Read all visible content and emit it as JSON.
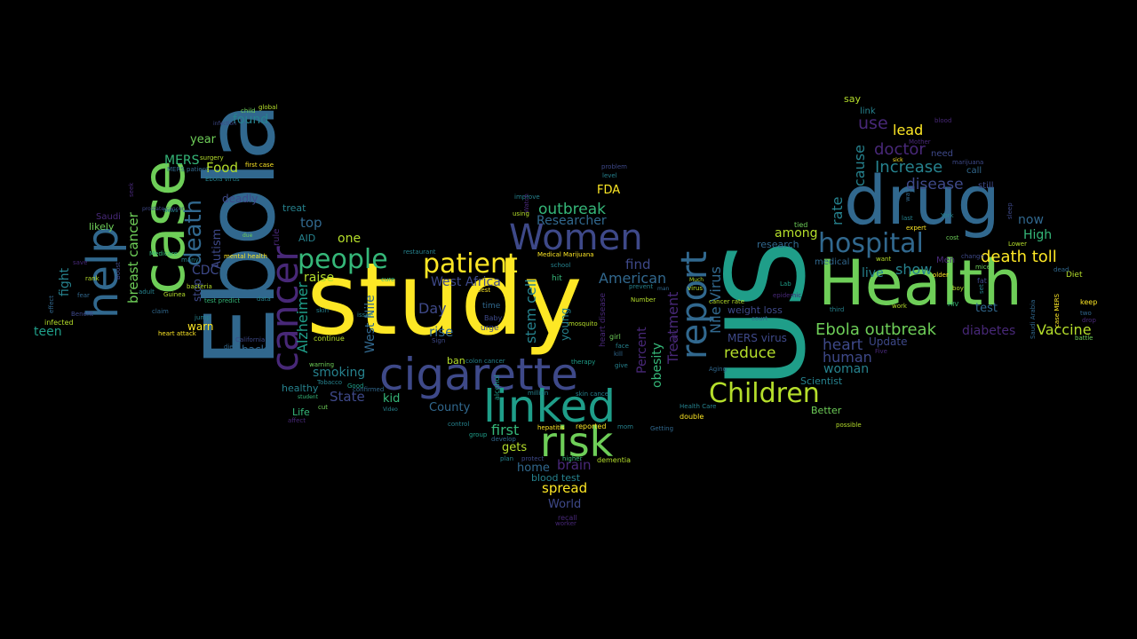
{
  "palette": {
    "background": "#000000",
    "yellow": "#fde725",
    "yellow_green": "#b5de2b",
    "green": "#6ece58",
    "sea_green": "#35b779",
    "teal": "#1f9e89",
    "teal_blue": "#26828e",
    "blue": "#31688e",
    "indigo": "#3e4989",
    "violet": "#482878",
    "purple": "#440154"
  },
  "words": [
    {
      "text": "study",
      "color": "#fde725"
    },
    {
      "text": "US",
      "color": "#1f9e89"
    },
    {
      "text": "Health",
      "color": "#6ece58"
    },
    {
      "text": "Ebola",
      "color": "#31688e"
    },
    {
      "text": "drug",
      "color": "#31688e"
    },
    {
      "text": "case",
      "color": "#6ece58"
    },
    {
      "text": "cigarette",
      "color": "#3e4989"
    },
    {
      "text": "linked",
      "color": "#1f9e89"
    },
    {
      "text": "risk",
      "color": "#6ece58"
    },
    {
      "text": "help",
      "color": "#31688e"
    },
    {
      "text": "cancer",
      "color": "#482878"
    },
    {
      "text": "report",
      "color": "#31688e"
    },
    {
      "text": "Women",
      "color": "#3e4989"
    },
    {
      "text": "patient",
      "color": "#fde725"
    },
    {
      "text": "hospital",
      "color": "#31688e"
    },
    {
      "text": "Children",
      "color": "#b5de2b"
    },
    {
      "text": "people",
      "color": "#35b779"
    },
    {
      "text": "death",
      "color": "#31688e"
    },
    {
      "text": "Ebola outbreak",
      "color": "#6ece58"
    },
    {
      "text": "death toll",
      "color": "#fde725"
    },
    {
      "text": "Vaccine",
      "color": "#b5de2b"
    },
    {
      "text": "Increase",
      "color": "#26828e"
    },
    {
      "text": "doctor",
      "color": "#482878"
    },
    {
      "text": "disease",
      "color": "#3e4989"
    },
    {
      "text": "use",
      "color": "#482878"
    },
    {
      "text": "lead",
      "color": "#fde725"
    },
    {
      "text": "cause",
      "color": "#26828e"
    },
    {
      "text": "rate",
      "color": "#26828e"
    },
    {
      "text": "heart",
      "color": "#3e4989"
    },
    {
      "text": "human",
      "color": "#3e4989"
    },
    {
      "text": "woman",
      "color": "#26828e"
    },
    {
      "text": "show",
      "color": "#26828e"
    },
    {
      "text": "live",
      "color": "#26828e"
    },
    {
      "text": "now",
      "color": "#31688e"
    },
    {
      "text": "High",
      "color": "#35b779"
    },
    {
      "text": "test",
      "color": "#31688e"
    },
    {
      "text": "diabetes",
      "color": "#482878"
    },
    {
      "text": "Update",
      "color": "#3e4989"
    },
    {
      "text": "among",
      "color": "#b5de2b"
    },
    {
      "text": "research",
      "color": "#31688e"
    },
    {
      "text": "Scientist",
      "color": "#26828e"
    },
    {
      "text": "Better",
      "color": "#6ece58"
    },
    {
      "text": "outbreak",
      "color": "#35b779"
    },
    {
      "text": "Researcher",
      "color": "#31688e"
    },
    {
      "text": "FDA",
      "color": "#fde725"
    },
    {
      "text": "stem cell",
      "color": "#26828e"
    },
    {
      "text": "West Africa",
      "color": "#3e4989"
    },
    {
      "text": "Day",
      "color": "#3e4989"
    },
    {
      "text": "rise",
      "color": "#31688e"
    },
    {
      "text": "ban",
      "color": "#b5de2b"
    },
    {
      "text": "American",
      "color": "#31688e"
    },
    {
      "text": "find",
      "color": "#3e4989"
    },
    {
      "text": "reduce",
      "color": "#b5de2b"
    },
    {
      "text": "Treatment",
      "color": "#482878"
    },
    {
      "text": "Percent",
      "color": "#482878"
    },
    {
      "text": "obesity",
      "color": "#35b779"
    },
    {
      "text": "Nile Virus",
      "color": "#31688e"
    },
    {
      "text": "MERS virus",
      "color": "#3e4989"
    },
    {
      "text": "weight loss",
      "color": "#3e4989"
    },
    {
      "text": "smoking",
      "color": "#26828e"
    },
    {
      "text": "State",
      "color": "#3e4989"
    },
    {
      "text": "kid",
      "color": "#35b779"
    },
    {
      "text": "County",
      "color": "#31688e"
    },
    {
      "text": "first",
      "color": "#35b779"
    },
    {
      "text": "gets",
      "color": "#b5de2b"
    },
    {
      "text": "home",
      "color": "#31688e"
    },
    {
      "text": "brain",
      "color": "#482878"
    },
    {
      "text": "blood test",
      "color": "#26828e"
    },
    {
      "text": "spread",
      "color": "#fde725"
    },
    {
      "text": "World",
      "color": "#3e4989"
    },
    {
      "text": "healthy",
      "color": "#26828e"
    },
    {
      "text": "Life",
      "color": "#35b779"
    },
    {
      "text": "top",
      "color": "#31688e"
    },
    {
      "text": "one",
      "color": "#b5de2b"
    },
    {
      "text": "raise",
      "color": "#b5de2b"
    },
    {
      "text": "AID",
      "color": "#26828e"
    },
    {
      "text": "treat",
      "color": "#26828e"
    },
    {
      "text": "Alzheimer",
      "color": "#1f9e89"
    },
    {
      "text": "West Nile",
      "color": "#31688e"
    },
    {
      "text": "young",
      "color": "#26828e"
    },
    {
      "text": "Food",
      "color": "#b5de2b"
    },
    {
      "text": "MERS",
      "color": "#35b779"
    },
    {
      "text": "year",
      "color": "#6ece58"
    },
    {
      "text": "found",
      "color": "#26828e"
    },
    {
      "text": "deadly",
      "color": "#3e4989"
    },
    {
      "text": "Autism",
      "color": "#3e4989"
    },
    {
      "text": "CDC",
      "color": "#3e4989"
    },
    {
      "text": "stop",
      "color": "#3e4989"
    },
    {
      "text": "warn",
      "color": "#fde725"
    },
    {
      "text": "back",
      "color": "#31688e"
    },
    {
      "text": "breast cancer",
      "color": "#6ece58"
    },
    {
      "text": "fight",
      "color": "#26828e"
    },
    {
      "text": "teen",
      "color": "#1f9e89"
    },
    {
      "text": "likely",
      "color": "#6ece58"
    },
    {
      "text": "Saudi",
      "color": "#482878"
    },
    {
      "text": "say",
      "color": "#b5de2b"
    },
    {
      "text": "link",
      "color": "#26828e"
    },
    {
      "text": "need",
      "color": "#3e4989"
    },
    {
      "text": "call",
      "color": "#31688e"
    },
    {
      "text": "still",
      "color": "#3e4989"
    },
    {
      "text": "Men",
      "color": "#482878"
    },
    {
      "text": "Diet",
      "color": "#b5de2b"
    },
    {
      "text": "keep",
      "color": "#fde725"
    },
    {
      "text": "medical",
      "color": "#31688e"
    },
    {
      "text": "improve",
      "color": "#26828e"
    },
    {
      "text": "school",
      "color": "#26828e"
    },
    {
      "text": "using",
      "color": "#b5de2b"
    },
    {
      "text": "time",
      "color": "#31688e"
    },
    {
      "text": "urge",
      "color": "#3e4989"
    },
    {
      "text": "Baby",
      "color": "#3e4989"
    },
    {
      "text": "best",
      "color": "#fde725"
    },
    {
      "text": "hit",
      "color": "#35b779"
    },
    {
      "text": "prevent",
      "color": "#26828e"
    },
    {
      "text": "Number",
      "color": "#b5de2b"
    },
    {
      "text": "restaurant",
      "color": "#26828e"
    },
    {
      "text": "Medical Marijuana",
      "color": "#fde725"
    },
    {
      "text": "heart disease",
      "color": "#482878"
    },
    {
      "text": "colon cancer",
      "color": "#26828e"
    },
    {
      "text": "girl",
      "color": "#6ece58"
    },
    {
      "text": "face",
      "color": "#26828e"
    },
    {
      "text": "kill",
      "color": "#31688e"
    },
    {
      "text": "give",
      "color": "#26828e"
    },
    {
      "text": "therapy",
      "color": "#1f9e89"
    },
    {
      "text": "control",
      "color": "#26828e"
    },
    {
      "text": "group",
      "color": "#1f9e89"
    },
    {
      "text": "develop",
      "color": "#31688e"
    },
    {
      "text": "plan",
      "color": "#26828e"
    },
    {
      "text": "protect",
      "color": "#3e4989"
    },
    {
      "text": "higher",
      "color": "#35b779"
    },
    {
      "text": "dementia",
      "color": "#b5de2b"
    },
    {
      "text": "skin cancer",
      "color": "#26828e"
    },
    {
      "text": "hepatitis",
      "color": "#fde725"
    },
    {
      "text": "reported",
      "color": "#fde725"
    },
    {
      "text": "mom",
      "color": "#26828e"
    },
    {
      "text": "Getting",
      "color": "#31688e"
    },
    {
      "text": "double",
      "color": "#fde725"
    },
    {
      "text": "Health Care",
      "color": "#26828e"
    },
    {
      "text": "recall",
      "color": "#482878"
    },
    {
      "text": "worker",
      "color": "#482878"
    },
    {
      "text": "infected",
      "color": "#b5de2b"
    },
    {
      "text": "heart attack",
      "color": "#fde725"
    },
    {
      "text": "test predict",
      "color": "#35b779"
    },
    {
      "text": "bacteria",
      "color": "#b5de2b"
    },
    {
      "text": "Guinea",
      "color": "#b5de2b"
    },
    {
      "text": "adult",
      "color": "#26828e"
    },
    {
      "text": "Medicare",
      "color": "#35b779"
    },
    {
      "text": "News",
      "color": "#26828e"
    },
    {
      "text": "mental health",
      "color": "#fde725"
    },
    {
      "text": "data",
      "color": "#26828e"
    },
    {
      "text": "jump",
      "color": "#26828e"
    },
    {
      "text": "die",
      "color": "#31688e"
    },
    {
      "text": "California",
      "color": "#3e4989"
    },
    {
      "text": "warning",
      "color": "#6ece58"
    },
    {
      "text": "continue",
      "color": "#b5de2b"
    },
    {
      "text": "Tobacco",
      "color": "#26828e"
    },
    {
      "text": "skin",
      "color": "#26828e"
    },
    {
      "text": "issue",
      "color": "#26828e"
    },
    {
      "text": "cure",
      "color": "#35b779"
    },
    {
      "text": "confirmed",
      "color": "#31688e"
    },
    {
      "text": "cut",
      "color": "#6ece58"
    },
    {
      "text": "student",
      "color": "#35b779"
    },
    {
      "text": "Good",
      "color": "#1f9e89"
    },
    {
      "text": "affect",
      "color": "#482878"
    },
    {
      "text": "due",
      "color": "#6ece58"
    },
    {
      "text": "rule",
      "color": "#482878"
    },
    {
      "text": "Ebola virus",
      "color": "#26828e"
    },
    {
      "text": "MERS patient",
      "color": "#31688e"
    },
    {
      "text": "first case",
      "color": "#fde725"
    },
    {
      "text": "surgery",
      "color": "#b5de2b"
    },
    {
      "text": "child",
      "color": "#6ece58"
    },
    {
      "text": "global",
      "color": "#b5de2b"
    },
    {
      "text": "infection",
      "color": "#3e4989"
    },
    {
      "text": "Watch",
      "color": "#482878"
    },
    {
      "text": "problem",
      "color": "#3e4989"
    },
    {
      "text": "level",
      "color": "#26828e"
    },
    {
      "text": "tied",
      "color": "#6ece58"
    },
    {
      "text": "epidemic",
      "color": "#482878"
    },
    {
      "text": "court",
      "color": "#31688e"
    },
    {
      "text": "cancer rate",
      "color": "#b5de2b"
    },
    {
      "text": "virus",
      "color": "#b5de2b"
    },
    {
      "text": "Much",
      "color": "#b5de2b"
    },
    {
      "text": "early",
      "color": "#482878"
    },
    {
      "text": "Aging",
      "color": "#31688e"
    },
    {
      "text": "man",
      "color": "#31688e"
    },
    {
      "text": "Lab",
      "color": "#1f9e89"
    },
    {
      "text": "third",
      "color": "#26828e"
    },
    {
      "text": "work",
      "color": "#b5de2b"
    },
    {
      "text": "HIV",
      "color": "#35b779"
    },
    {
      "text": "boy",
      "color": "#b5de2b"
    },
    {
      "text": "fat",
      "color": "#3e4989"
    },
    {
      "text": "mice",
      "color": "#6ece58"
    },
    {
      "text": "older",
      "color": "#fde725"
    },
    {
      "text": "change",
      "color": "#3e4989"
    },
    {
      "text": "last",
      "color": "#26828e"
    },
    {
      "text": "expert",
      "color": "#fde725"
    },
    {
      "text": "cost",
      "color": "#6ece58"
    },
    {
      "text": "blood",
      "color": "#482878"
    },
    {
      "text": "sick",
      "color": "#fde725"
    },
    {
      "text": "Mother",
      "color": "#482878"
    },
    {
      "text": "marijuana",
      "color": "#3e4989"
    },
    {
      "text": "Lower",
      "color": "#b5de2b"
    },
    {
      "text": "dead",
      "color": "#31688e"
    },
    {
      "text": "two",
      "color": "#31688e"
    },
    {
      "text": "drop",
      "color": "#482878"
    },
    {
      "text": "battle",
      "color": "#6ece58"
    },
    {
      "text": "sleep",
      "color": "#3e4989"
    },
    {
      "text": "set",
      "color": "#26828e"
    },
    {
      "text": "York",
      "color": "#26828e"
    },
    {
      "text": "Five",
      "color": "#482878"
    },
    {
      "text": "want",
      "color": "#b5de2b"
    },
    {
      "text": "possible",
      "color": "#b5de2b"
    },
    {
      "text": "way",
      "color": "#31688e"
    },
    {
      "text": "Saudi Arabia",
      "color": "#31688e"
    },
    {
      "text": "case MERS",
      "color": "#fde725"
    },
    {
      "text": "Benefit",
      "color": "#3e4989"
    },
    {
      "text": "fear",
      "color": "#31688e"
    },
    {
      "text": "rank",
      "color": "#b5de2b"
    },
    {
      "text": "save",
      "color": "#482878"
    },
    {
      "text": "effect",
      "color": "#31688e"
    },
    {
      "text": "claim",
      "color": "#31688e"
    },
    {
      "text": "Boost",
      "color": "#3e4989"
    },
    {
      "text": "prostate cancer",
      "color": "#3e4989"
    },
    {
      "text": "seek",
      "color": "#482878"
    },
    {
      "text": "many",
      "color": "#26828e"
    },
    {
      "text": "million",
      "color": "#26828e"
    },
    {
      "text": "alcohol",
      "color": "#1f9e89"
    },
    {
      "text": "mosquito",
      "color": "#b5de2b"
    },
    {
      "text": "Sign",
      "color": "#3e4989"
    },
    {
      "text": "Video",
      "color": "#26828e"
    },
    {
      "text": "Africa Ebola",
      "color": "#31688e"
    }
  ]
}
